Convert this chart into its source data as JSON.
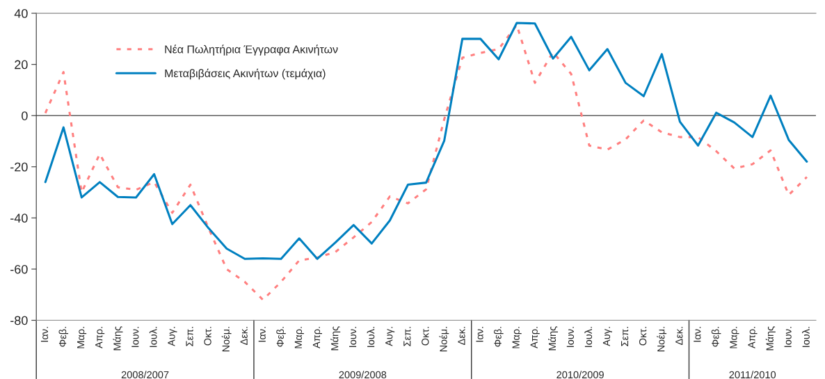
{
  "chart_data": {
    "type": "line",
    "categories": [
      "Ιαν.",
      "Φεβ.",
      "Μαρ.",
      "Απρ.",
      "Μάης",
      "Ιουν.",
      "Ιουλ.",
      "Αυγ.",
      "Σεπ.",
      "Οκτ.",
      "Νοέμ.",
      "Δεκ.",
      "Ιαν.",
      "Φεβ.",
      "Μαρ.",
      "Απρ.",
      "Μάης",
      "Ιουν.",
      "Ιουλ.",
      "Αυγ.",
      "Σεπ.",
      "Οκτ.",
      "Νοέμ.",
      "Δεκ.",
      "Ιαν.",
      "Φεβ.",
      "Μαρ.",
      "Απρ.",
      "Μάης",
      "Ιουν.",
      "Ιουλ.",
      "Αυγ.",
      "Σεπ.",
      "Οκτ.",
      "Νοέμ.",
      "Δεκ.",
      "Ιαν.",
      "Φεβ.",
      "Μαρ.",
      "Απρ.",
      "Μάης",
      "Ιουν.",
      "Ιουλ."
    ],
    "series": [
      {
        "name": "Νέα Πωλητήρια Έγγραφα Ακινήτων",
        "color": "#ff7f7f",
        "line_style": "dotted",
        "values": [
          1,
          17,
          -30,
          -15,
          -28,
          -29,
          -26,
          -38,
          -27,
          -44,
          -60,
          -65,
          -72,
          -65,
          -56.6,
          -55.5,
          -53.3,
          -47.6,
          -41.6,
          -31.6,
          -34.3,
          -28.8,
          -1.4,
          22.6,
          24.5,
          26,
          35.4,
          12.8,
          24.8,
          16.3,
          -11.7,
          -13.3,
          -9.3,
          -1.9,
          -6.5,
          -8.4,
          -8.4,
          -13.9,
          -20.7,
          -19,
          -13.6,
          -31,
          -24
        ]
      },
      {
        "name": "Μεταβιβάσεις Ακινήτων (τεμάχια)",
        "color": "#0080c0",
        "line_style": "solid",
        "values": [
          -26,
          -4.6,
          -32,
          -26,
          -31.8,
          -32,
          -22.9,
          -42.4,
          -35,
          -44,
          -52,
          -56,
          -55.8,
          -56,
          -48,
          -56,
          -49.6,
          -42.8,
          -50,
          -41,
          -27,
          -26.2,
          -9.8,
          30,
          30,
          22,
          36.2,
          36,
          22.3,
          30.8,
          17.7,
          26,
          12.8,
          7.6,
          24,
          -2.4,
          -11.7,
          1.1,
          -2.7,
          -8.4,
          7.8,
          -9.5,
          -18
        ]
      }
    ],
    "ylim": [
      -80,
      40
    ],
    "yticks": [
      -80,
      -60,
      -40,
      -20,
      0,
      20,
      40
    ],
    "ref_lines": [
      {
        "axis": "y",
        "value": 0,
        "color": "#606060"
      }
    ],
    "annotations": [
      "2008/2007",
      "2009/2008",
      "2010/2009",
      "2011/2010"
    ],
    "legend": "top left",
    "grid": false,
    "marker": "none"
  }
}
